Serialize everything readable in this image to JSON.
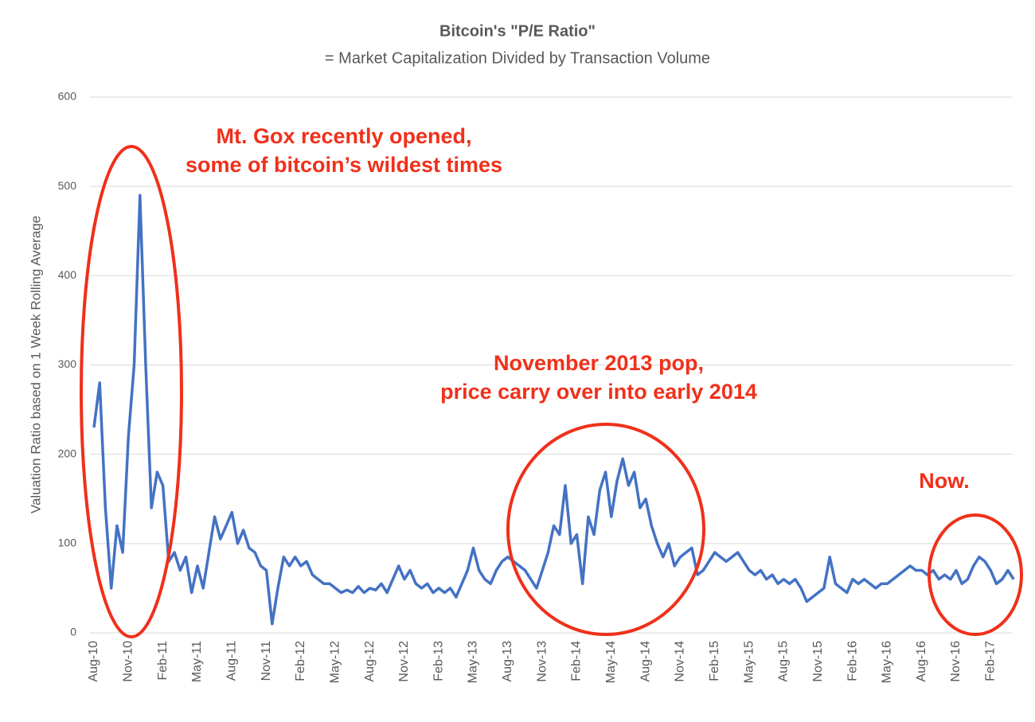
{
  "chart_data": {
    "type": "line",
    "title": "Bitcoin's \"P/E Ratio\"",
    "subtitle": "= Market Capitalization Divided by Transaction Volume",
    "y_label": "Valuation Ratio based on 1 Week Rolling Average",
    "categories": [
      "Aug-10",
      null,
      null,
      null,
      null,
      null,
      "Nov-10",
      null,
      null,
      null,
      null,
      null,
      "Feb-11",
      null,
      null,
      null,
      null,
      null,
      "May-11",
      null,
      null,
      null,
      null,
      null,
      "Aug-11",
      null,
      null,
      null,
      null,
      null,
      "Nov-11",
      null,
      null,
      null,
      null,
      null,
      "Feb-12",
      null,
      null,
      null,
      null,
      null,
      "May-12",
      null,
      null,
      null,
      null,
      null,
      "Aug-12",
      null,
      null,
      null,
      null,
      null,
      "Nov-12",
      null,
      null,
      null,
      null,
      null,
      "Feb-13",
      null,
      null,
      null,
      null,
      null,
      "May-13",
      null,
      null,
      null,
      null,
      null,
      "Aug-13",
      null,
      null,
      null,
      null,
      null,
      "Nov-13",
      null,
      null,
      null,
      null,
      null,
      "Feb-14",
      null,
      null,
      null,
      null,
      null,
      "May-14",
      null,
      null,
      null,
      null,
      null,
      "Aug-14",
      null,
      null,
      null,
      null,
      null,
      "Nov-14",
      null,
      null,
      null,
      null,
      null,
      "Feb-15",
      null,
      null,
      null,
      null,
      null,
      "May-15",
      null,
      null,
      null,
      null,
      null,
      "Aug-15",
      null,
      null,
      null,
      null,
      null,
      "Nov-15",
      null,
      null,
      null,
      null,
      null,
      "Feb-16",
      null,
      null,
      null,
      null,
      null,
      "May-16",
      null,
      null,
      null,
      null,
      null,
      "Aug-16",
      null,
      null,
      null,
      null,
      null,
      "Nov-16",
      null,
      null,
      null,
      null,
      null,
      "Feb-17",
      null,
      null,
      null,
      null
    ],
    "values": [
      230,
      280,
      140,
      50,
      120,
      90,
      220,
      300,
      490,
      300,
      140,
      180,
      165,
      80,
      90,
      70,
      85,
      45,
      75,
      50,
      90,
      130,
      105,
      120,
      135,
      100,
      115,
      95,
      90,
      75,
      70,
      10,
      50,
      85,
      75,
      85,
      75,
      80,
      65,
      60,
      55,
      55,
      50,
      45,
      48,
      45,
      52,
      45,
      50,
      48,
      55,
      45,
      60,
      75,
      60,
      70,
      55,
      50,
      55,
      45,
      50,
      45,
      50,
      40,
      55,
      70,
      95,
      70,
      60,
      55,
      70,
      80,
      85,
      80,
      75,
      70,
      60,
      50,
      70,
      90,
      120,
      110,
      165,
      100,
      110,
      55,
      130,
      110,
      160,
      180,
      130,
      170,
      195,
      165,
      180,
      140,
      150,
      120,
      100,
      85,
      100,
      75,
      85,
      90,
      95,
      65,
      70,
      80,
      90,
      85,
      80,
      85,
      90,
      80,
      70,
      65,
      70,
      60,
      65,
      55,
      60,
      55,
      60,
      50,
      35,
      40,
      45,
      50,
      85,
      55,
      50,
      45,
      60,
      55,
      60,
      55,
      50,
      55,
      55,
      60,
      65,
      70,
      75,
      70,
      70,
      65,
      70,
      60,
      65,
      60,
      70,
      55,
      60,
      75,
      85,
      80,
      70,
      55,
      60,
      70,
      60
    ],
    "color": "#4472c4",
    "ylim": [
      0,
      600
    ],
    "yticks": [
      0,
      100,
      200,
      300,
      400,
      500,
      600
    ],
    "grid": true,
    "annotations": [
      {
        "lines": [
          "Mt. Gox recently opened,",
          "some of bitcoin’s wildest times"
        ]
      },
      {
        "lines": [
          "November 2013 pop,",
          "price carry over into early 2014"
        ]
      },
      {
        "lines": [
          "Now."
        ]
      }
    ]
  }
}
